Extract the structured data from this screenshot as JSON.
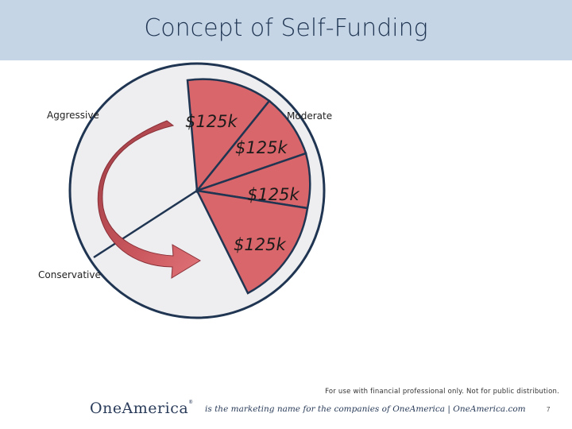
{
  "title": "Concept of Self-Funding",
  "labels": {
    "aggressive": "Aggressive",
    "moderate": "Moderate",
    "conservative": "Conservative"
  },
  "slices": [
    "$125k",
    "$125k",
    "$125k",
    "$125k"
  ],
  "colors": {
    "slice": "#d9666a",
    "outline": "#1f3552",
    "remainder": "#eeeef0",
    "arrow": "#c05055",
    "title_bar": "#c5d5e6"
  },
  "footer": {
    "disclaimer": "For use with financial professional only. Not for public distribution.",
    "logo": "OneAmerica",
    "tagline": "is the marketing name for the companies of OneAmerica  |  OneAmerica.com",
    "page": "7"
  }
}
